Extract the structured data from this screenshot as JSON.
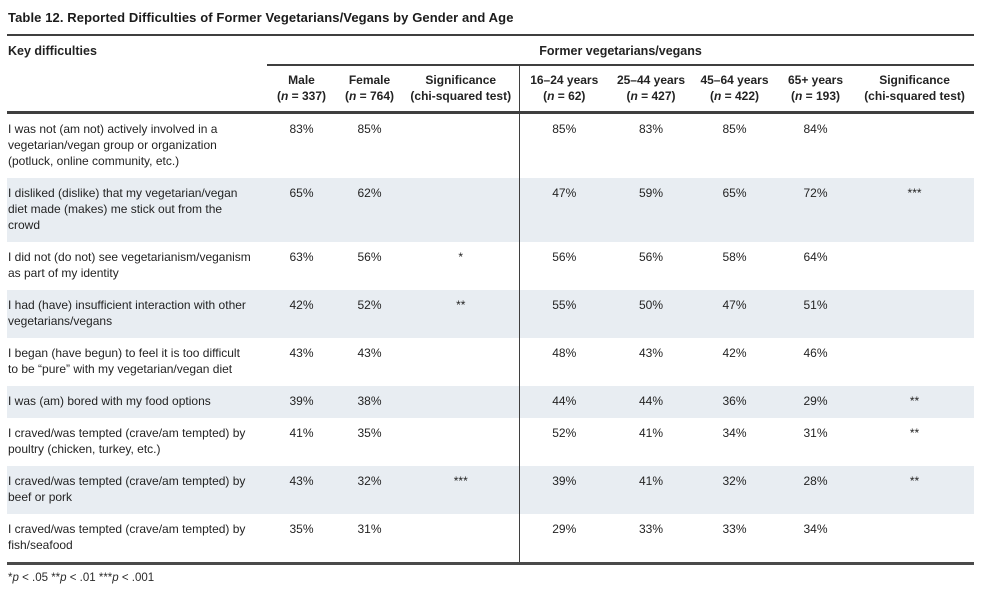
{
  "page": {
    "title": "Table 12. Reported Difficulties of Former Vegetarians/Vegans by Gender and Age",
    "footnote": [
      {
        "stars": "*",
        "p": "p",
        "rest": " < .05 "
      },
      {
        "stars": "**",
        "p": "p",
        "rest": " < .01 "
      },
      {
        "stars": "***",
        "p": "p",
        "rest": " < .001"
      }
    ]
  },
  "table": {
    "row_header": "Key difficulties",
    "group_header": "Former vegetarians/vegans",
    "columns": [
      {
        "label": "Male",
        "sub_open": "(",
        "sub_n": "n",
        "sub_rest": " = 337)"
      },
      {
        "label": "Female",
        "sub_open": "(",
        "sub_n": "n",
        "sub_rest": " = 764)"
      },
      {
        "label": "Significance",
        "sub": "(chi-squared test)"
      },
      {
        "label": "16–24 years",
        "sub_open": "(",
        "sub_n": "n",
        "sub_rest": " = 62)"
      },
      {
        "label": "25–44 years",
        "sub_open": "(",
        "sub_n": "n",
        "sub_rest": " = 427)"
      },
      {
        "label": "45–64 years",
        "sub_open": "(",
        "sub_n": "n",
        "sub_rest": " = 422)"
      },
      {
        "label": "65+ years",
        "sub_open": "(",
        "sub_n": "n",
        "sub_rest": " = 193)"
      },
      {
        "label": "Significance",
        "sub": "(chi-squared test)"
      }
    ],
    "rows": [
      {
        "difficulty": "I was not (am not) actively involved in a vegetarian/vegan group or organization (potluck, online community, etc.)",
        "values": [
          "83%",
          "85%",
          "",
          "85%",
          "83%",
          "85%",
          "84%",
          ""
        ]
      },
      {
        "difficulty": "I disliked (dislike) that my vegetarian/vegan diet made (makes) me stick out from the crowd",
        "values": [
          "65%",
          "62%",
          "",
          "47%",
          "59%",
          "65%",
          "72%",
          "***"
        ]
      },
      {
        "difficulty": "I did not (do not) see vegetarianism/veganism as part of my identity",
        "values": [
          "63%",
          "56%",
          "*",
          "56%",
          "56%",
          "58%",
          "64%",
          ""
        ]
      },
      {
        "difficulty": "I had (have) insufficient interaction with other vegetarians/vegans",
        "values": [
          "42%",
          "52%",
          "**",
          "55%",
          "50%",
          "47%",
          "51%",
          ""
        ]
      },
      {
        "difficulty": "I began (have begun) to feel it is too difficult to be “pure” with my vegetarian/vegan diet",
        "values": [
          "43%",
          "43%",
          "",
          "48%",
          "43%",
          "42%",
          "46%",
          ""
        ]
      },
      {
        "difficulty": "I was (am) bored with my food options",
        "values": [
          "39%",
          "38%",
          "",
          "44%",
          "44%",
          "36%",
          "29%",
          "**"
        ]
      },
      {
        "difficulty": "I craved/was tempted (crave/am tempted) by poultry (chicken, turkey, etc.)",
        "values": [
          "41%",
          "35%",
          "",
          "52%",
          "41%",
          "34%",
          "31%",
          "**"
        ]
      },
      {
        "difficulty": "I craved/was tempted (crave/am tempted) by beef or pork",
        "values": [
          "43%",
          "32%",
          "***",
          "39%",
          "41%",
          "32%",
          "28%",
          "**"
        ]
      },
      {
        "difficulty": "I craved/was tempted (crave/am tempted) by fish/seafood",
        "values": [
          "35%",
          "31%",
          "",
          "29%",
          "33%",
          "33%",
          "34%",
          ""
        ]
      }
    ],
    "colors": {
      "zebra_row": "#e8edf2",
      "rule": "#3f3f3f",
      "text": "#232323"
    }
  }
}
